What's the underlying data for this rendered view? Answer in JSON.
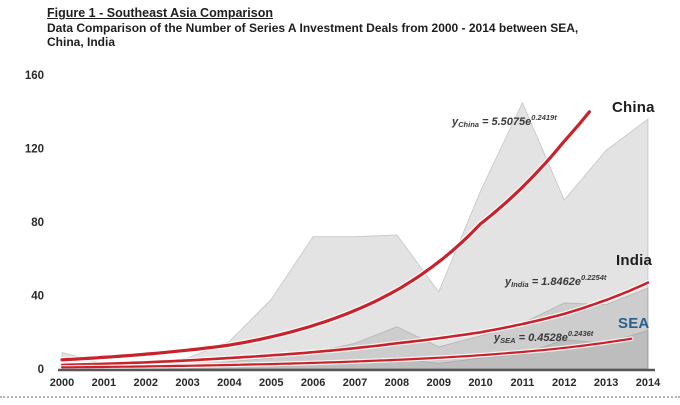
{
  "figure": {
    "title": "Figure 1 - Southeast Asia Comparison",
    "subtitle_line1": "Data Comparison of the Number of Series A Investment Deals from 2000 - 2014 between SEA,",
    "subtitle_line2": "China, India"
  },
  "chart_data": {
    "type": "area",
    "title": "Figure 1 - Southeast Asia Comparison",
    "subtitle": "Data Comparison of the Number of Series A Investment Deals from 2000 - 2014 between SEA, China, India",
    "categories": [
      2000,
      2001,
      2002,
      2003,
      2004,
      2005,
      2006,
      2007,
      2008,
      2009,
      2010,
      2011,
      2012,
      2013,
      2014
    ],
    "ylim": [
      0,
      160
    ],
    "yticks": [
      0,
      40,
      80,
      120,
      160
    ],
    "grid": false,
    "legend_position": "inline-right",
    "series": [
      {
        "name": "China",
        "values": [
          9,
          3,
          3,
          6,
          15,
          38,
          72,
          72,
          73,
          42,
          97,
          145,
          92,
          119,
          136
        ]
      },
      {
        "name": "India",
        "values": [
          2,
          1,
          1,
          2,
          4,
          6,
          9,
          14,
          23,
          12,
          18,
          25,
          36,
          35,
          44
        ]
      },
      {
        "name": "SEA",
        "values": [
          1,
          0.5,
          0.5,
          1,
          2,
          2,
          3,
          4,
          6,
          3,
          6,
          8,
          16,
          14,
          21
        ]
      }
    ],
    "area_fill": "#8c8c8c",
    "area_opacity": 0.24,
    "area_edge": "rgba(120,120,120,0.35)",
    "trend_color": "#c8232c",
    "axis_color": "#55565a",
    "tick_color": "#2a2a2a",
    "trendlines": [
      {
        "name": "China",
        "label": "China",
        "label_color": "#1d1d1f",
        "eq_lhs": "y",
        "eq_sub": "China",
        "eq_mid": " = 5.5075",
        "eq_base": "e",
        "eq_sup": "0.2419t",
        "a": 5.5075,
        "b": 0.2419,
        "points": [
          [
            2000,
            5
          ],
          [
            2004,
            13
          ],
          [
            2008,
            43
          ],
          [
            2010,
            79
          ],
          [
            2012,
            124
          ],
          [
            2012.6,
            140
          ]
        ]
      },
      {
        "name": "India",
        "label": "India",
        "label_color": "#1d1d1f",
        "eq_lhs": "y",
        "eq_sub": "India",
        "eq_mid": " = 1.8462",
        "eq_base": "e",
        "eq_sup": "0.2254t",
        "a": 1.8462,
        "b": 0.2254,
        "points": [
          [
            2000,
            2.2
          ],
          [
            2004,
            6
          ],
          [
            2008,
            14
          ],
          [
            2010,
            20
          ],
          [
            2012,
            30
          ],
          [
            2014,
            47
          ]
        ]
      },
      {
        "name": "SEA",
        "label": "SEA",
        "label_color": "#28618c",
        "eq_lhs": "y",
        "eq_sub": "SEA",
        "eq_mid": " = 0.4528",
        "eq_base": "e",
        "eq_sup": "0.2436t",
        "a": 0.4528,
        "b": 0.2436,
        "points": [
          [
            2000,
            0.9
          ],
          [
            2004,
            2.2
          ],
          [
            2008,
            5
          ],
          [
            2010,
            7.5
          ],
          [
            2012,
            11.5
          ],
          [
            2013.6,
            16.5
          ]
        ]
      }
    ]
  }
}
